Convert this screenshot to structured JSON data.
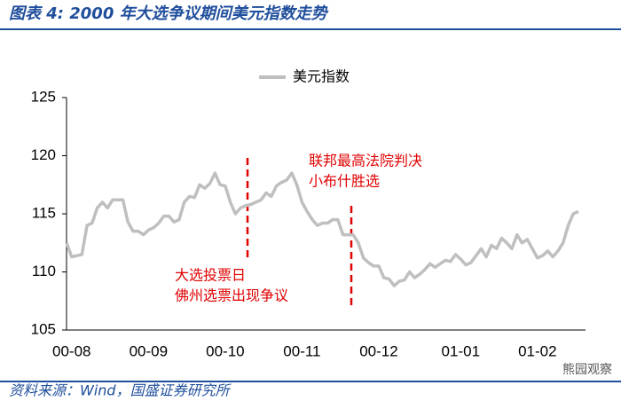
{
  "chart_data": {
    "type": "line",
    "title": "图表 4:  2000 年大选争议期间美元指数走势",
    "source": "资料来源：Wind，国盛证券研究所",
    "watermark": "熊园观察",
    "annotations": [
      {
        "lines": [
          "大选投票日",
          "佛州选票出现争议"
        ]
      },
      {
        "lines": [
          "联邦最高法院判决",
          "小布什胜选"
        ]
      }
    ],
    "legend": "top",
    "categories": [
      null,
      "00-08",
      null,
      null,
      null,
      null,
      null,
      null,
      null,
      null,
      null,
      null,
      null,
      null,
      null,
      null,
      "00-09",
      null,
      null,
      null,
      null,
      null,
      null,
      null,
      null,
      null,
      null,
      null,
      null,
      null,
      null,
      "00-10",
      null,
      null,
      null,
      null,
      null,
      null,
      null,
      null,
      null,
      null,
      null,
      null,
      null,
      null,
      "00-11",
      null,
      null,
      null,
      null,
      null,
      null,
      null,
      null,
      null,
      null,
      null,
      null,
      null,
      null,
      "00-12",
      null,
      null,
      null,
      null,
      null,
      null,
      null,
      null,
      null,
      null,
      null,
      null,
      null,
      null,
      null,
      "01-01",
      null,
      null,
      null,
      null,
      null,
      null,
      null,
      null,
      null,
      null,
      null,
      null,
      null,
      null,
      "01-02",
      null,
      null,
      null,
      null,
      null,
      null,
      null,
      null
    ],
    "series": [
      {
        "name": "美元指数",
        "color": "#bfbfbf",
        "values": [
          112.5,
          111.3,
          111.4,
          111.5,
          114,
          114.2,
          115.5,
          116,
          115.5,
          116.2,
          116.2,
          116.2,
          114.3,
          113.5,
          113.5,
          113.2,
          113.6,
          113.8,
          114.2,
          114.8,
          114.8,
          114.3,
          114.5,
          116,
          116.5,
          116.4,
          117.5,
          117.2,
          117.6,
          118.5,
          117.5,
          117.4,
          116,
          115,
          115.5,
          115.7,
          115.8,
          116,
          116.2,
          116.8,
          116.5,
          117.4,
          117.7,
          117.9,
          118.5,
          117.5,
          116,
          115.2,
          114.5,
          114,
          114.2,
          114.2,
          114.5,
          114.5,
          113.2,
          113.2,
          113.2,
          112.5,
          111.2,
          110.8,
          110.5,
          110.5,
          109.5,
          109.4,
          108.8,
          109.2,
          109.3,
          110,
          109.5,
          109.8,
          110.2,
          110.7,
          110.4,
          110.7,
          111,
          110.9,
          111.5,
          111.1,
          110.6,
          110.8,
          111.4,
          112,
          111.3,
          112.3,
          112,
          112.9,
          112.5,
          112,
          113.2,
          112.5,
          112.8,
          112,
          111.2,
          111.4,
          111.8,
          111.3,
          111.8,
          112.5,
          114,
          115,
          115.2
        ]
      }
    ],
    "ylim": [
      105,
      125
    ],
    "yticks": [
      105,
      110,
      115,
      120,
      125
    ]
  }
}
